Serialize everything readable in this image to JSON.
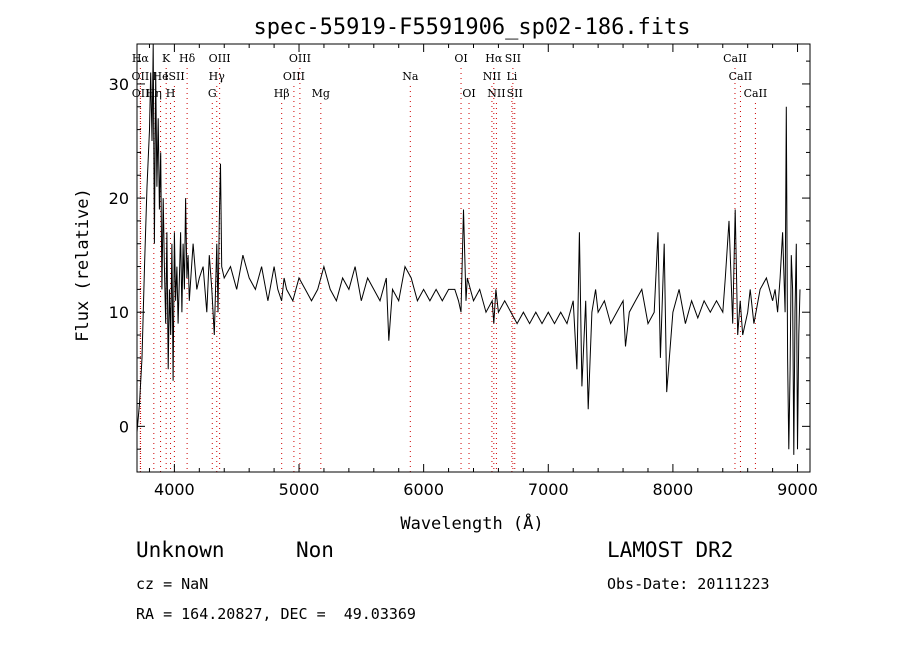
{
  "chart_data": {
    "type": "line",
    "title": "spec-55919-F5591906_sp02-186.fits",
    "xlabel": "Wavelength (Å)",
    "ylabel": "Flux (relative)",
    "xlim": [
      3700,
      9100
    ],
    "ylim": [
      -4,
      33.5
    ],
    "x_ticks": [
      4000,
      5000,
      6000,
      7000,
      8000,
      9000
    ],
    "y_ticks": [
      0,
      10,
      20,
      30
    ],
    "grid": false,
    "legend": "none",
    "line_color": "#000000",
    "marker_color": "#cc0000",
    "series": [
      {
        "x": [
          3700,
          3720,
          3740,
          3760,
          3780,
          3800,
          3810,
          3820,
          3830,
          3840,
          3850,
          3860,
          3870,
          3880,
          3890,
          3900,
          3910,
          3920,
          3930,
          3940,
          3950,
          3960,
          3970,
          3980,
          3990,
          4000,
          4010,
          4020,
          4030,
          4040,
          4050,
          4060,
          4070,
          4080,
          4090,
          4100,
          4110,
          4120,
          4150,
          4180,
          4200,
          4230,
          4260,
          4280,
          4300,
          4320,
          4340,
          4350,
          4360,
          4370,
          4380,
          4400,
          4450,
          4500,
          4550,
          4600,
          4650,
          4700,
          4750,
          4800,
          4830,
          4860,
          4880,
          4900,
          4950,
          5000,
          5050,
          5100,
          5150,
          5200,
          5250,
          5300,
          5350,
          5400,
          5450,
          5500,
          5550,
          5600,
          5650,
          5700,
          5720,
          5750,
          5800,
          5850,
          5900,
          5950,
          6000,
          6050,
          6100,
          6150,
          6200,
          6250,
          6280,
          6300,
          6320,
          6340,
          6350,
          6400,
          6450,
          6500,
          6550,
          6563,
          6580,
          6600,
          6650,
          6700,
          6750,
          6800,
          6850,
          6900,
          6950,
          7000,
          7050,
          7100,
          7150,
          7200,
          7230,
          7250,
          7270,
          7300,
          7320,
          7350,
          7380,
          7400,
          7450,
          7500,
          7550,
          7600,
          7620,
          7650,
          7700,
          7750,
          7800,
          7850,
          7880,
          7900,
          7930,
          7950,
          8000,
          8050,
          8100,
          8150,
          8200,
          8250,
          8300,
          8350,
          8400,
          8420,
          8450,
          8480,
          8500,
          8520,
          8540,
          8560,
          8600,
          8620,
          8650,
          8700,
          8750,
          8800,
          8820,
          8840,
          8860,
          8880,
          8900,
          8910,
          8920,
          8930,
          8940,
          8950,
          8960,
          8970,
          8980,
          8990,
          9000,
          9010,
          9020
        ],
        "values": [
          -0.5,
          2,
          6,
          14,
          21,
          26,
          31,
          25,
          35,
          16,
          31,
          21,
          27,
          19,
          24,
          12,
          20,
          14,
          9,
          17,
          5,
          12,
          8,
          16,
          4,
          17,
          11,
          14,
          9,
          13,
          17,
          10,
          16,
          12,
          20,
          13,
          15,
          11,
          16,
          12,
          13,
          14,
          10,
          15,
          12,
          8,
          16,
          10,
          18,
          23,
          14,
          13,
          14,
          12,
          15,
          13,
          12,
          14,
          11,
          14,
          12,
          11,
          13,
          12,
          11,
          13,
          12,
          11,
          12,
          14,
          12,
          11,
          13,
          12,
          14,
          11,
          13,
          12,
          11,
          13,
          7.5,
          12,
          11,
          14,
          13,
          11,
          12,
          11,
          12,
          11,
          12,
          12,
          11,
          10,
          19,
          11,
          13,
          11,
          12,
          10,
          11,
          9,
          12,
          10,
          11,
          10,
          9,
          10,
          9,
          10,
          9,
          10,
          9,
          10,
          9,
          11,
          5,
          17,
          3.5,
          11,
          1.5,
          10,
          12,
          10,
          11,
          9,
          10,
          11,
          7,
          10,
          11,
          12,
          9,
          10,
          17,
          6,
          16,
          3,
          10,
          12,
          9,
          11,
          9.5,
          11,
          10,
          11,
          10,
          13,
          18,
          9,
          19,
          8,
          11,
          8,
          10,
          12,
          9,
          12,
          13,
          11,
          12,
          10,
          13,
          17,
          10,
          28,
          6,
          -2,
          5,
          15,
          12,
          -2.5,
          10,
          16,
          -2,
          8,
          12
        ]
      }
    ],
    "line_markers": [
      {
        "label": "Hα",
        "x": 3727,
        "row": 1
      },
      {
        "label": "OII",
        "x": 3727,
        "row": 2
      },
      {
        "label": "OII",
        "x": 3729,
        "row": 3
      },
      {
        "label": "K",
        "x": 3934,
        "row": 1
      },
      {
        "label": "He",
        "x": 3889,
        "row": 2
      },
      {
        "label": "Hη",
        "x": 3835,
        "row": 3
      },
      {
        "label": "ISII",
        "x": 4000,
        "row": 2
      },
      {
        "label": "H",
        "x": 3969,
        "row": 3
      },
      {
        "label": "Hδ",
        "x": 4102,
        "row": 1
      },
      {
        "label": "OIII",
        "x": 4363,
        "row": 1
      },
      {
        "label": "Hγ",
        "x": 4340,
        "row": 2
      },
      {
        "label": "G",
        "x": 4304,
        "row": 3
      },
      {
        "label": "OIII",
        "x": 5007,
        "row": 1
      },
      {
        "label": "OIII",
        "x": 4959,
        "row": 2
      },
      {
        "label": "Hβ",
        "x": 4861,
        "row": 3
      },
      {
        "label": "Mg",
        "x": 5175,
        "row": 3
      },
      {
        "label": "Na",
        "x": 5893,
        "row": 2
      },
      {
        "label": "OI",
        "x": 6300,
        "row": 1
      },
      {
        "label": "OI",
        "x": 6364,
        "row": 3
      },
      {
        "label": "Hα",
        "x": 6563,
        "row": 1
      },
      {
        "label": "SII",
        "x": 6716,
        "row": 1
      },
      {
        "label": "NII",
        "x": 6548,
        "row": 2
      },
      {
        "label": "Li",
        "x": 6708,
        "row": 2
      },
      {
        "label": "NII",
        "x": 6584,
        "row": 3
      },
      {
        "label": "SII",
        "x": 6731,
        "row": 3
      },
      {
        "label": "CaII",
        "x": 8498,
        "row": 1
      },
      {
        "label": "CaII",
        "x": 8542,
        "row": 2
      },
      {
        "label": "CaII",
        "x": 8662,
        "row": 3
      }
    ]
  },
  "info": {
    "class": "Unknown",
    "subclass": "Non",
    "survey": "LAMOST DR2",
    "cz": "cz = NaN",
    "obs_date": "Obs-Date: 20111223",
    "coords": "RA = 164.20827, DEC =  49.03369"
  }
}
